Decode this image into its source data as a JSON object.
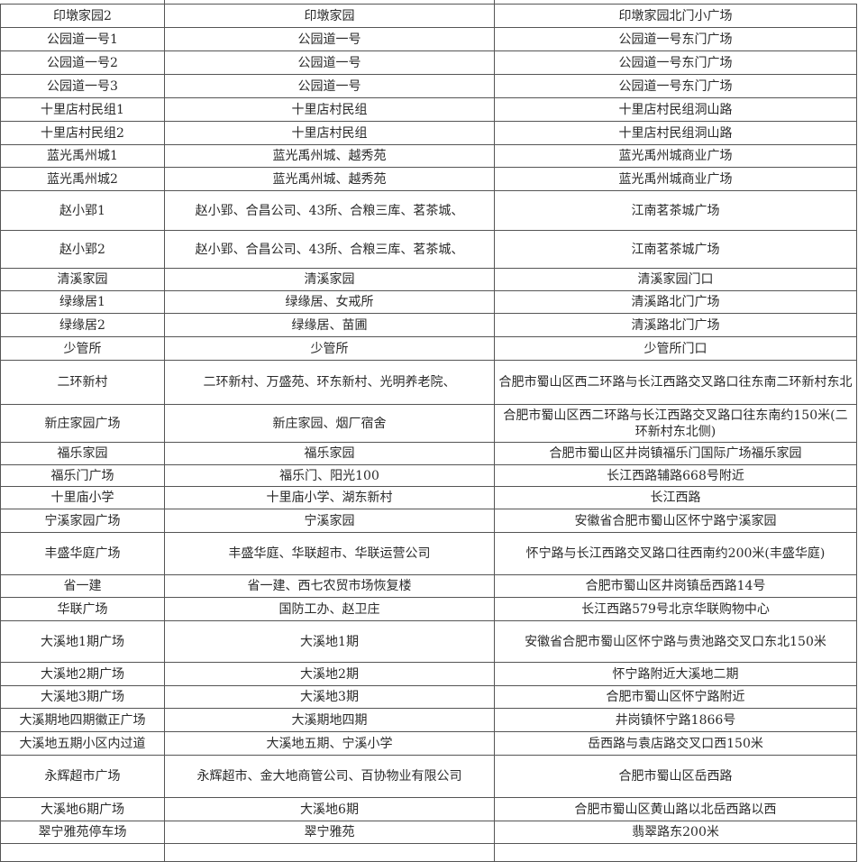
{
  "rows": [
    [
      "印墩家园2",
      "印墩家园",
      "印墩家园北门小广场"
    ],
    [
      "公园道一号1",
      "公园道一号",
      "公园道一号东门广场"
    ],
    [
      "公园道一号2",
      "公园道一号",
      "公园道一号东门广场"
    ],
    [
      "公园道一号3",
      "公园道一号",
      "公园道一号东门广场"
    ],
    [
      "十里店村民组1",
      "十里店村民组",
      "十里店村民组洞山路"
    ],
    [
      "十里店村民组2",
      "十里店村民组",
      "十里店村民组洞山路"
    ],
    [
      "蓝光禹州城1",
      "蓝光禹州城、越秀苑",
      "蓝光禹州城商业广场"
    ],
    [
      "蓝光禹州城2",
      "蓝光禹州城、越秀苑",
      "蓝光禹州城商业广场"
    ],
    [
      "赵小郢1",
      "赵小郢、合昌公司、43所、合粮三库、茗茶城、",
      "江南茗茶城广场"
    ],
    [
      "赵小郢2",
      "赵小郢、合昌公司、43所、合粮三库、茗茶城、",
      "江南茗茶城广场"
    ],
    [
      "清溪家园",
      "清溪家园",
      "清溪家园门口"
    ],
    [
      "绿缘居1",
      "绿缘居、女戒所",
      "清溪路北门广场"
    ],
    [
      "绿缘居2",
      "绿缘居、苗圃",
      "清溪路北门广场"
    ],
    [
      "少管所",
      "少管所",
      "少管所门口"
    ],
    [
      "二环新村",
      "二环新村、万盛苑、环东新村、光明养老院、",
      "合肥市蜀山区西二环路与长江西路交叉路口往东南二环新村东北"
    ],
    [
      "新庄家园广场",
      "新庄家园、烟厂宿舍",
      "合肥市蜀山区西二环路与长江西路交叉路口往东南约150米(二环新村东北侧)"
    ],
    [
      "福乐家园",
      "福乐家园",
      "合肥市蜀山区井岗镇福乐门国际广场福乐家园"
    ],
    [
      "福乐门广场",
      "福乐门、阳光100",
      "长江西路辅路668号附近"
    ],
    [
      "十里庙小学",
      "十里庙小学、湖东新村",
      "长江西路"
    ],
    [
      "宁溪家园广场",
      "宁溪家园",
      "安徽省合肥市蜀山区怀宁路宁溪家园"
    ],
    [
      "丰盛华庭广场",
      "丰盛华庭、华联超市、华联运营公司",
      "怀宁路与长江西路交叉路口往西南约200米(丰盛华庭)"
    ],
    [
      "省一建",
      "省一建、西七农贸市场恢复楼",
      "合肥市蜀山区井岗镇岳西路14号"
    ],
    [
      "华联广场",
      "国防工办、赵卫庄",
      "长江西路579号北京华联购物中心"
    ],
    [
      "大溪地1期广场",
      "大溪地1期",
      "安徽省合肥市蜀山区怀宁路与贵池路交叉口东北150米"
    ],
    [
      "大溪地2期广场",
      "大溪地2期",
      "怀宁路附近大溪地二期"
    ],
    [
      "大溪地3期广场",
      "大溪地3期",
      "合肥市蜀山区怀宁路附近"
    ],
    [
      "大溪期地四期徽正广场",
      "大溪期地四期",
      "井岗镇怀宁路1866号"
    ],
    [
      "大溪地五期小区内过道",
      "大溪地五期、宁溪小学",
      "岳西路与袁店路交叉口西150米"
    ],
    [
      "永辉超市广场",
      "永辉超市、金大地商管公司、百协物业有限公司",
      "合肥市蜀山区岳西路"
    ],
    [
      "大溪地6期广场",
      "大溪地6期",
      "合肥市蜀山区黄山路以北岳西路以西"
    ],
    [
      "翠宁雅苑停车场",
      "翠宁雅苑",
      "翡翠路东200米"
    ]
  ]
}
